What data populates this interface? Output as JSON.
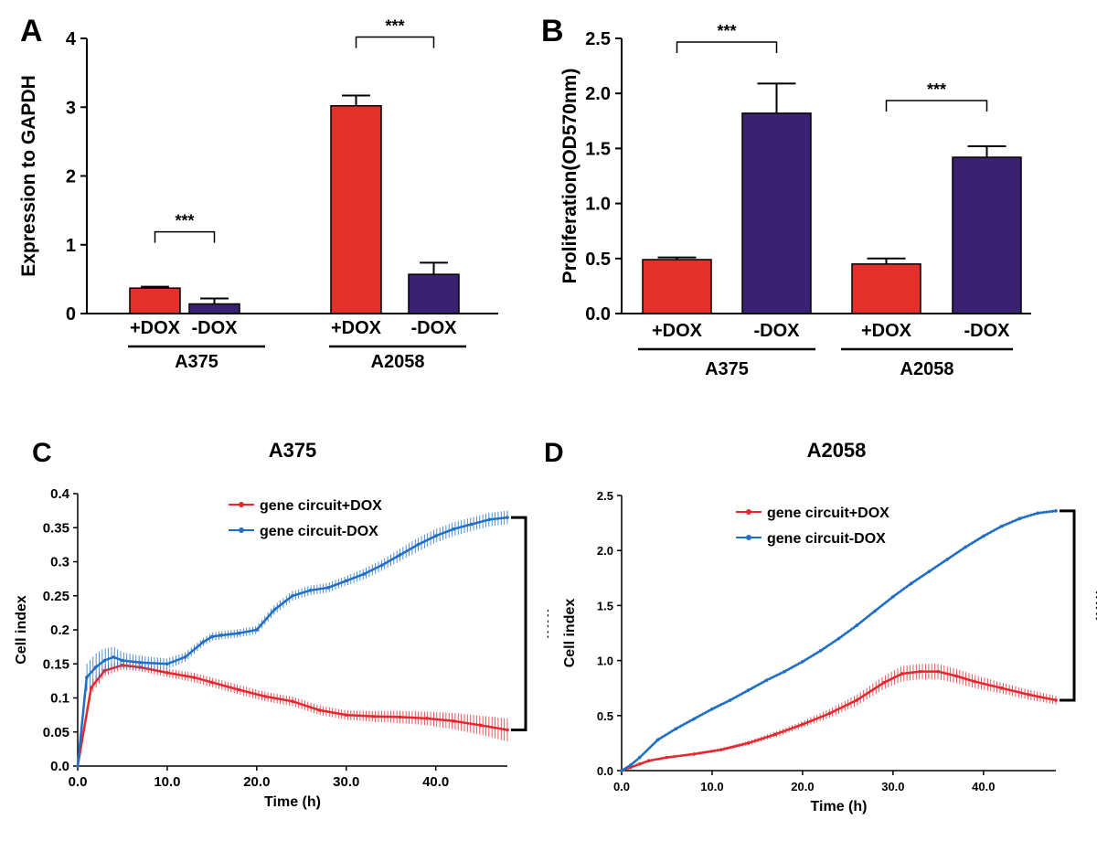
{
  "panels": [
    {
      "letter": "A"
    },
    {
      "letter": "B"
    },
    {
      "letter": "C"
    },
    {
      "letter": "D"
    }
  ],
  "colors": {
    "red": "#e2312b",
    "purple": "#3a2270",
    "blue": "#1f6fc6",
    "line_red": "#e8262e",
    "axis": "#000000"
  },
  "chart_data": [
    {
      "type": "bar",
      "panel": "A",
      "title": "",
      "ylabel": "Expression to GAPDH",
      "ylim": [
        0,
        4
      ],
      "yticks": [
        "0",
        "1",
        "2",
        "3",
        "4"
      ],
      "categories": [
        "+DOX",
        "-DOX",
        "+DOX",
        "-DOX"
      ],
      "groups": [
        {
          "name": "A375",
          "bars": [
            0,
            1
          ]
        },
        {
          "name": "A2058",
          "bars": [
            2,
            3
          ]
        }
      ],
      "values": [
        0.37,
        0.14,
        3.02,
        0.57
      ],
      "errors": [
        0.02,
        0.08,
        0.15,
        0.17
      ],
      "bar_colors": [
        "#e2312b",
        "#3a2270",
        "#e2312b",
        "#3a2270"
      ],
      "significance": [
        {
          "bars": [
            0,
            1
          ],
          "label": "***"
        },
        {
          "bars": [
            2,
            3
          ],
          "label": "***"
        }
      ]
    },
    {
      "type": "bar",
      "panel": "B",
      "title": "",
      "ylabel": "Proliferation(OD570nm)",
      "ylim": [
        0,
        2.5
      ],
      "yticks": [
        "0.0",
        "0.5",
        "1.0",
        "1.5",
        "2.0",
        "2.5"
      ],
      "categories": [
        "+DOX",
        "-DOX",
        "+DOX",
        "-DOX"
      ],
      "groups": [
        {
          "name": "A375",
          "bars": [
            0,
            1
          ]
        },
        {
          "name": "A2058",
          "bars": [
            2,
            3
          ]
        }
      ],
      "values": [
        0.49,
        1.82,
        0.45,
        1.42
      ],
      "errors": [
        0.02,
        0.27,
        0.05,
        0.1
      ],
      "bar_colors": [
        "#e2312b",
        "#3a2270",
        "#e2312b",
        "#3a2270"
      ],
      "significance": [
        {
          "bars": [
            0,
            1
          ],
          "label": "***"
        },
        {
          "bars": [
            2,
            3
          ],
          "label": "***"
        }
      ]
    },
    {
      "type": "line",
      "panel": "C",
      "title": "A375",
      "xlabel": "Time (h)",
      "ylabel": "Cell index",
      "xlim": [
        0,
        48
      ],
      "ylim": [
        0,
        0.4
      ],
      "xticks": [
        "0.0",
        "10.0",
        "20.0",
        "30.0",
        "40.0"
      ],
      "yticks": [
        "0.0",
        "0.05",
        "0.1",
        "0.15",
        "0.2",
        "0.25",
        "0.3",
        "0.35",
        "0.4"
      ],
      "legend_position": "top-center",
      "significance": "***",
      "series": [
        {
          "name": "gene circuit+DOX",
          "color": "#e8262e",
          "x": [
            0,
            1.5,
            3,
            5,
            7,
            10,
            13,
            15,
            18,
            21,
            24,
            27,
            30,
            33,
            36,
            39,
            42,
            45,
            48
          ],
          "y": [
            0,
            0.115,
            0.14,
            0.148,
            0.145,
            0.137,
            0.13,
            0.123,
            0.112,
            0.102,
            0.095,
            0.082,
            0.075,
            0.073,
            0.072,
            0.07,
            0.066,
            0.06,
            0.053
          ],
          "err": [
            0,
            0.01,
            0.008,
            0.006,
            0.006,
            0.006,
            0.007,
            0.007,
            0.007,
            0.007,
            0.007,
            0.007,
            0.007,
            0.008,
            0.009,
            0.01,
            0.012,
            0.014,
            0.017
          ]
        },
        {
          "name": "gene circuit-DOX",
          "color": "#1f6fc6",
          "x": [
            0,
            1,
            2,
            3,
            4,
            5,
            7,
            10,
            12,
            14,
            15,
            16,
            18,
            20,
            22,
            24,
            26,
            28,
            30,
            32,
            34,
            36,
            38,
            40,
            42,
            44,
            46,
            48
          ],
          "y": [
            0,
            0.13,
            0.145,
            0.155,
            0.16,
            0.155,
            0.152,
            0.15,
            0.16,
            0.182,
            0.19,
            0.192,
            0.195,
            0.2,
            0.23,
            0.25,
            0.258,
            0.262,
            0.272,
            0.282,
            0.295,
            0.31,
            0.325,
            0.338,
            0.348,
            0.355,
            0.362,
            0.365
          ],
          "err": [
            0,
            0.02,
            0.02,
            0.018,
            0.015,
            0.012,
            0.01,
            0.008,
            0.007,
            0.006,
            0.006,
            0.006,
            0.006,
            0.006,
            0.007,
            0.007,
            0.007,
            0.007,
            0.007,
            0.008,
            0.008,
            0.009,
            0.01,
            0.01,
            0.01,
            0.01,
            0.01,
            0.01
          ]
        }
      ]
    },
    {
      "type": "line",
      "panel": "D",
      "title": "A2058",
      "xlabel": "Time (h)",
      "ylabel": "Cell index",
      "xlim": [
        0,
        48
      ],
      "ylim": [
        0,
        2.5
      ],
      "xticks": [
        "0.0",
        "10.0",
        "20.0",
        "30.0",
        "40.0"
      ],
      "yticks": [
        "0.0",
        "0.5",
        "1.0",
        "1.5",
        "2.0",
        "2.5"
      ],
      "legend_position": "top-center",
      "significance": "***",
      "series": [
        {
          "name": "gene circuit+DOX",
          "color": "#e8262e",
          "x": [
            0,
            1,
            2,
            3,
            5,
            8,
            11,
            14,
            17,
            20,
            23,
            26,
            29,
            31,
            33,
            35,
            37,
            39,
            42,
            45,
            48
          ],
          "y": [
            0,
            0.03,
            0.06,
            0.09,
            0.12,
            0.15,
            0.19,
            0.25,
            0.33,
            0.42,
            0.52,
            0.64,
            0.8,
            0.88,
            0.9,
            0.9,
            0.86,
            0.81,
            0.75,
            0.69,
            0.64
          ],
          "err": [
            0,
            0.01,
            0.01,
            0.01,
            0.01,
            0.01,
            0.015,
            0.02,
            0.025,
            0.03,
            0.04,
            0.05,
            0.06,
            0.07,
            0.07,
            0.07,
            0.065,
            0.06,
            0.05,
            0.045,
            0.04
          ]
        },
        {
          "name": "gene circuit-DOX",
          "color": "#1f6fc6",
          "x": [
            0,
            1,
            2,
            4,
            6,
            8,
            10,
            12,
            14,
            16,
            18,
            20,
            22,
            24,
            26,
            28,
            30,
            32,
            34,
            36,
            38,
            40,
            42,
            44,
            46,
            48
          ],
          "y": [
            0,
            0.05,
            0.12,
            0.28,
            0.38,
            0.47,
            0.56,
            0.64,
            0.73,
            0.82,
            0.9,
            0.99,
            1.09,
            1.2,
            1.32,
            1.45,
            1.58,
            1.7,
            1.81,
            1.92,
            2.03,
            2.13,
            2.22,
            2.29,
            2.34,
            2.36
          ],
          "err": [
            0,
            0.01,
            0.01,
            0.015,
            0.015,
            0.015,
            0.015,
            0.015,
            0.015,
            0.015,
            0.015,
            0.015,
            0.015,
            0.015,
            0.015,
            0.015,
            0.015,
            0.015,
            0.015,
            0.015,
            0.015,
            0.015,
            0.015,
            0.015,
            0.015,
            0.015
          ]
        }
      ]
    }
  ]
}
